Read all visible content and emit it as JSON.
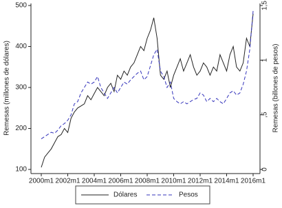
{
  "chart_data": {
    "type": "line",
    "y_label": "Remesas (millones de dólares)",
    "y2_label": "Remesas (billones de pesos)",
    "x": [
      2000,
      2000.25,
      2000.5,
      2000.75,
      2001,
      2001.25,
      2001.5,
      2001.75,
      2002,
      2002.25,
      2002.5,
      2002.75,
      2003,
      2003.25,
      2003.5,
      2003.75,
      2004,
      2004.25,
      2004.5,
      2004.75,
      2005,
      2005.25,
      2005.5,
      2005.75,
      2006,
      2006.25,
      2006.5,
      2006.75,
      2007,
      2007.25,
      2007.5,
      2007.75,
      2008,
      2008.25,
      2008.5,
      2008.75,
      2009,
      2009.25,
      2009.5,
      2009.75,
      2010,
      2010.25,
      2010.5,
      2010.75,
      2011,
      2011.25,
      2011.5,
      2011.75,
      2012,
      2012.25,
      2012.5,
      2012.75,
      2013,
      2013.25,
      2013.5,
      2013.75,
      2014,
      2014.25,
      2014.5,
      2014.75,
      2015,
      2015.25,
      2015.5,
      2015.75,
      2016
    ],
    "series": [
      {
        "name": "Dólares",
        "color": "#222222",
        "dash": false,
        "axis": "y",
        "values": [
          105,
          130,
          140,
          150,
          165,
          180,
          185,
          200,
          190,
          225,
          240,
          250,
          255,
          260,
          280,
          270,
          285,
          300,
          290,
          280,
          300,
          310,
          290,
          330,
          320,
          340,
          330,
          350,
          360,
          380,
          400,
          390,
          420,
          440,
          470,
          420,
          330,
          320,
          340,
          300,
          330,
          350,
          370,
          340,
          360,
          380,
          350,
          330,
          340,
          360,
          350,
          330,
          350,
          340,
          380,
          360,
          340,
          380,
          400,
          350,
          340,
          360,
          420,
          400,
          480
        ]
      },
      {
        "name": "Pesos",
        "color": "#3333bb",
        "dash": true,
        "axis": "y2",
        "values": [
          0.28,
          0.3,
          0.32,
          0.34,
          0.33,
          0.36,
          0.4,
          0.42,
          0.45,
          0.5,
          0.6,
          0.62,
          0.7,
          0.75,
          0.8,
          0.78,
          0.8,
          0.85,
          0.75,
          0.7,
          0.65,
          0.7,
          0.75,
          0.7,
          0.75,
          0.8,
          0.78,
          0.82,
          0.85,
          0.88,
          0.9,
          0.82,
          0.85,
          0.95,
          1.05,
          1.1,
          0.9,
          0.85,
          0.75,
          0.8,
          0.65,
          0.62,
          0.6,
          0.62,
          0.6,
          0.62,
          0.64,
          0.65,
          0.7,
          0.68,
          0.62,
          0.65,
          0.62,
          0.65,
          0.62,
          0.6,
          0.65,
          0.7,
          0.72,
          0.68,
          0.7,
          0.78,
          0.9,
          1.1,
          1.45
        ]
      }
    ],
    "xlim": [
      2000,
      2016
    ],
    "xticks": [
      {
        "value": 2000,
        "label": "2000m1"
      },
      {
        "value": 2002,
        "label": "2002m1"
      },
      {
        "value": 2004,
        "label": "2004m1"
      },
      {
        "value": 2006,
        "label": "2006m1"
      },
      {
        "value": 2008,
        "label": "2008m1"
      },
      {
        "value": 2010,
        "label": "2010m1"
      },
      {
        "value": 2012,
        "label": "2012m1"
      },
      {
        "value": 2014,
        "label": "2014m1"
      },
      {
        "value": 2016,
        "label": "2016m1"
      }
    ],
    "ylim": [
      100,
      500
    ],
    "yticks": [
      100,
      200,
      300,
      400,
      500
    ],
    "y2lim": [
      0,
      1.5
    ],
    "y2ticks": [
      0,
      {
        "value": 0.5,
        "label": ",5"
      },
      1,
      {
        "value": 1.5,
        "label": "1,5"
      }
    ]
  }
}
